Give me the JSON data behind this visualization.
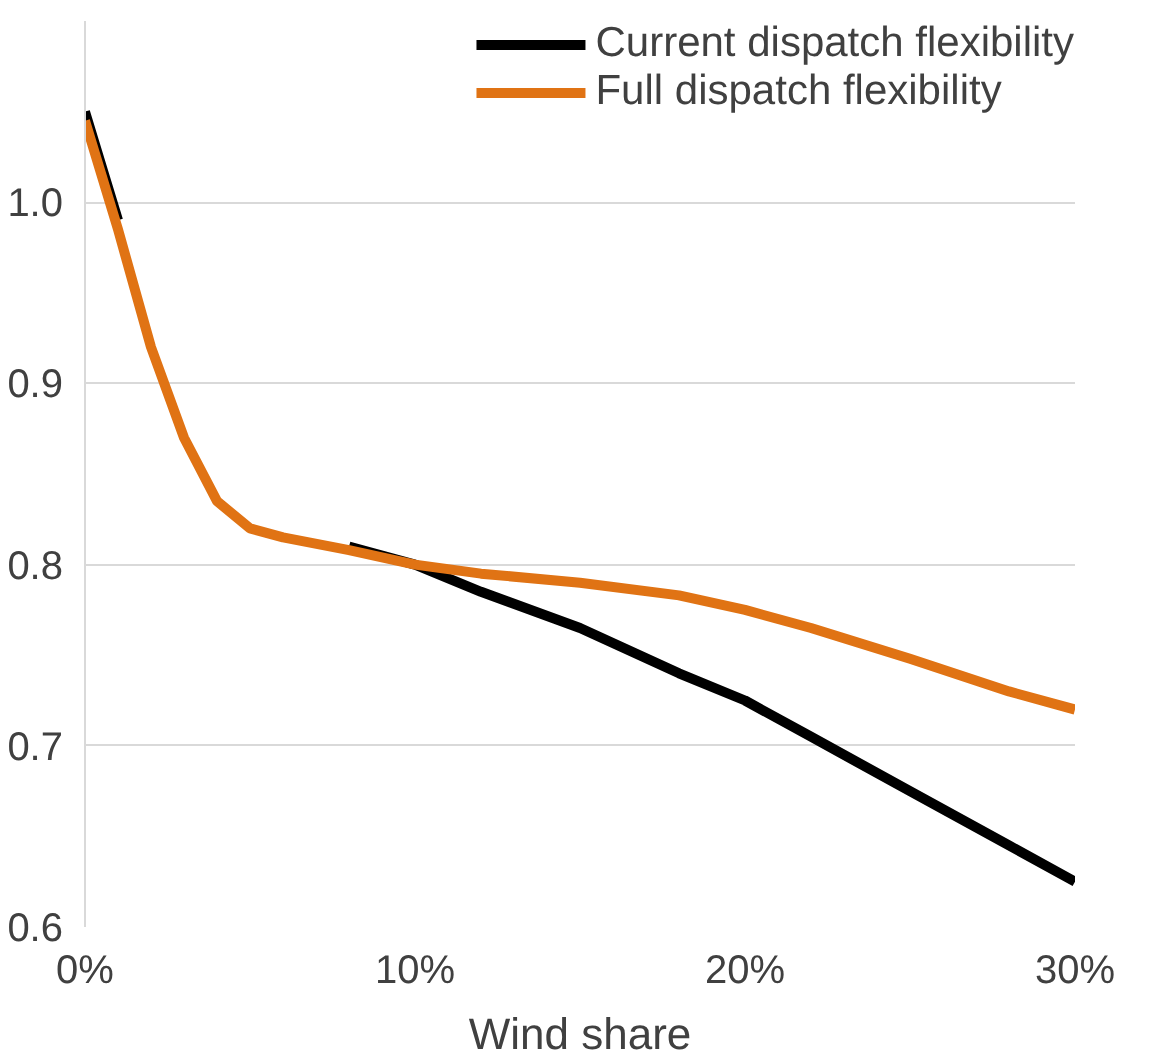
{
  "chart_data": {
    "type": "line",
    "xlabel": "Wind share",
    "x": [
      0,
      1,
      2,
      3,
      4,
      5,
      6,
      8,
      10,
      12,
      15,
      18,
      20,
      22,
      25,
      28,
      30
    ],
    "series": [
      {
        "name": "Current dispatch flexibility",
        "color": "#000000",
        "values": [
          1.05,
          0.99,
          null,
          null,
          null,
          null,
          null,
          0.81,
          0.8,
          0.785,
          0.765,
          0.74,
          0.725,
          0.705,
          0.675,
          0.645,
          0.625
        ]
      },
      {
        "name": "Full dispatch flexibility",
        "color": "#e07314",
        "values": [
          1.045,
          0.985,
          0.92,
          0.87,
          0.835,
          0.82,
          0.815,
          0.808,
          0.8,
          0.795,
          0.79,
          0.783,
          0.775,
          0.765,
          0.748,
          0.73,
          0.72
        ]
      }
    ],
    "xlim": [
      0,
      30
    ],
    "xticks": [
      {
        "value": 0,
        "label": "0%"
      },
      {
        "value": 10,
        "label": "10%"
      },
      {
        "value": 20,
        "label": "20%"
      },
      {
        "value": 30,
        "label": "30%"
      }
    ],
    "ylim": [
      0.6,
      1.1
    ],
    "yticks": [
      {
        "value": 0.6,
        "label": "0.6"
      },
      {
        "value": 0.7,
        "label": "0.7"
      },
      {
        "value": 0.8,
        "label": "0.8"
      },
      {
        "value": 0.9,
        "label": "0.9"
      },
      {
        "value": 1.0,
        "label": "1.0"
      }
    ],
    "grid": "y",
    "legend": "top right",
    "marker": "none",
    "line_style": "solid"
  }
}
